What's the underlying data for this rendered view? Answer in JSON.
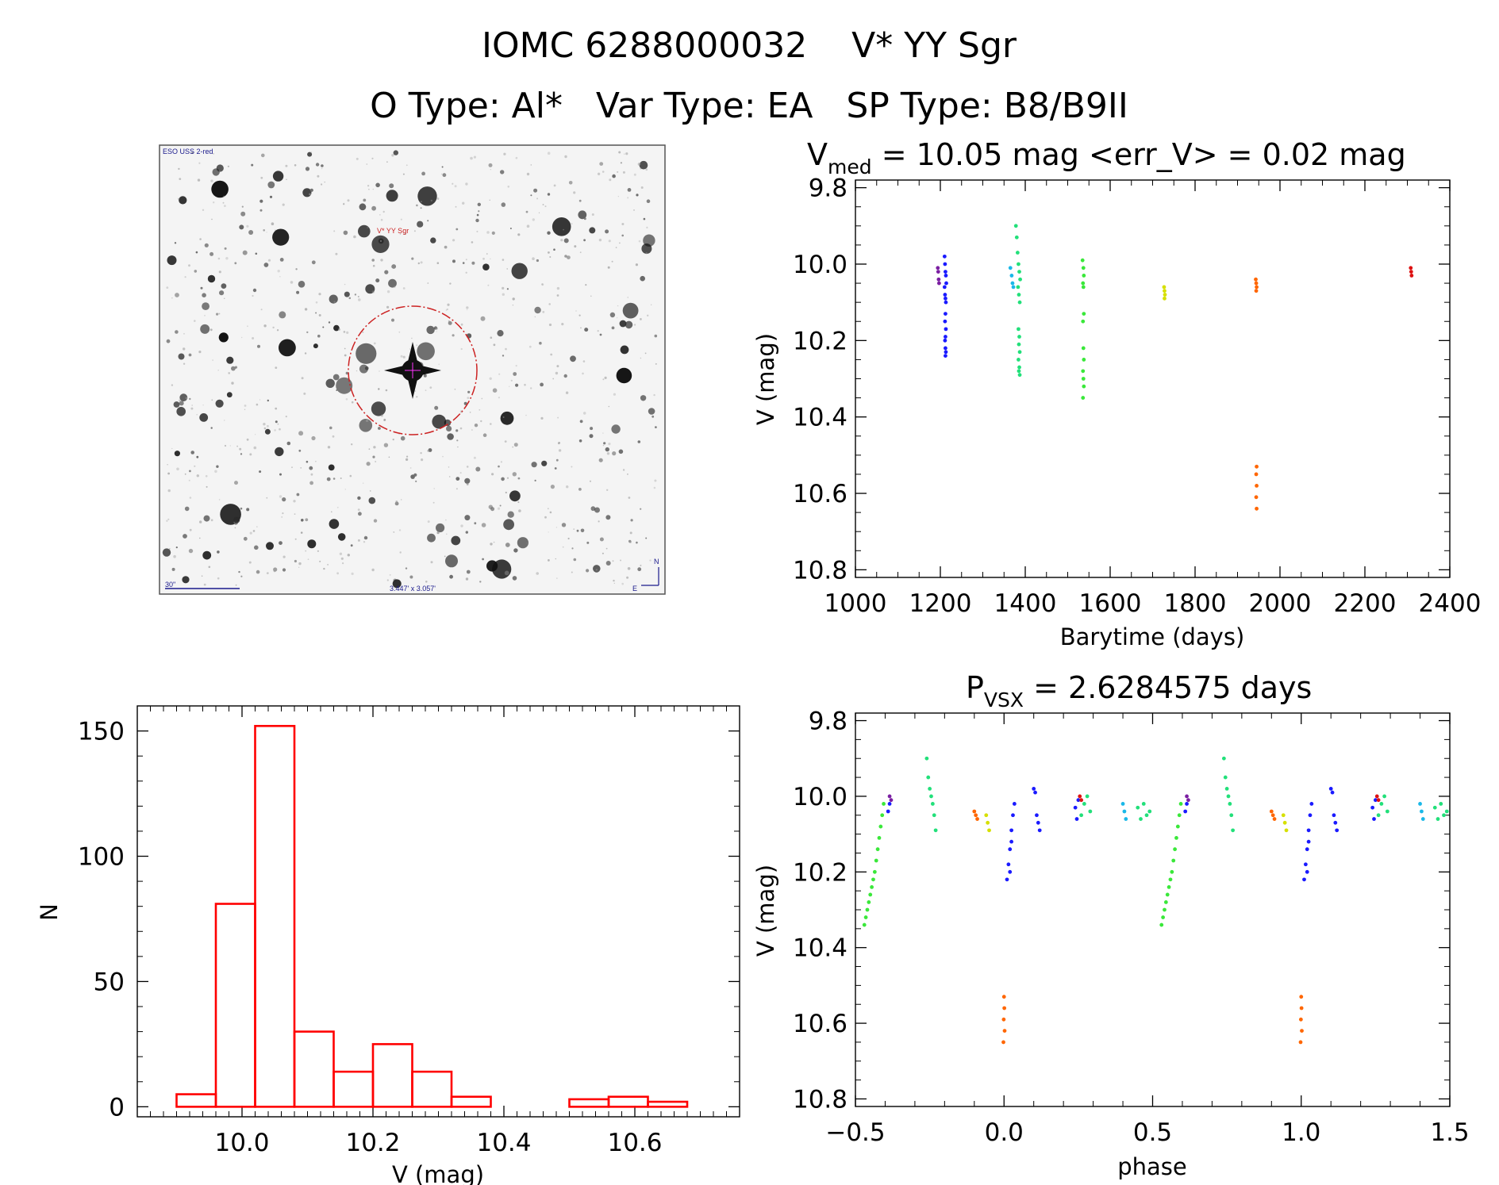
{
  "header": {
    "line1": "IOMC 6288000032    V* YY Sgr",
    "line2": "O Type: Al*   Var Type: EA   SP Type: B8/B9II"
  },
  "finder": {
    "survey_label": "ESO USS 2-red",
    "target_label": "V* YY Sgr",
    "scale_label": "30\"",
    "fov_label": "3.447' x 3.057'",
    "north_label": "N",
    "east_label": "E"
  },
  "chart_data": [
    {
      "id": "light_curve",
      "type": "scatter",
      "title_main": "V",
      "title_sub": "med",
      "title_rest": " = 10.05 mag <err_V> = 0.02 mag",
      "xlabel": "Barytime (days)",
      "ylabel": "V (mag)",
      "xlim": [
        1000,
        2400
      ],
      "ylim": [
        10.82,
        9.78
      ],
      "xticks": [
        "1000",
        "1200",
        "1400",
        "1600",
        "1800",
        "2000",
        "2200",
        "2400"
      ],
      "yticks": [
        "9.8",
        "10.0",
        "10.2",
        "10.4",
        "10.6",
        "10.8"
      ],
      "series": [
        {
          "name": "s1",
          "color": "#7b1fa2",
          "x": [
            1194,
            1195,
            1196,
            1197
          ],
          "y": [
            10.01,
            10.02,
            10.04,
            10.05
          ]
        },
        {
          "name": "s2",
          "color": "#1a1aff",
          "x": [
            1210,
            1211,
            1212,
            1213,
            1214,
            1210,
            1211,
            1212,
            1213,
            1212,
            1211,
            1213,
            1212,
            1211,
            1212,
            1213,
            1212
          ],
          "y": [
            9.98,
            10.0,
            10.02,
            10.03,
            10.05,
            10.06,
            10.08,
            10.09,
            10.1,
            10.13,
            10.15,
            10.17,
            10.19,
            10.2,
            10.22,
            10.23,
            10.24
          ]
        },
        {
          "name": "s3",
          "color": "#1ab8e8",
          "x": [
            1365,
            1368,
            1370,
            1372
          ],
          "y": [
            10.01,
            10.03,
            10.05,
            10.06
          ]
        },
        {
          "name": "s4",
          "color": "#22e07a",
          "x": [
            1378,
            1380,
            1382,
            1384,
            1386,
            1388,
            1383,
            1385,
            1387,
            1384,
            1386,
            1385,
            1387,
            1384,
            1386,
            1385,
            1387
          ],
          "y": [
            9.9,
            9.93,
            9.97,
            10.0,
            10.02,
            10.04,
            10.06,
            10.08,
            10.1,
            10.17,
            10.19,
            10.21,
            10.23,
            10.25,
            10.27,
            10.28,
            10.29
          ]
        },
        {
          "name": "s5",
          "color": "#3ae83a",
          "x": [
            1535,
            1537,
            1538,
            1536,
            1537,
            1538,
            1536,
            1537,
            1538,
            1536,
            1537,
            1538,
            1536
          ],
          "y": [
            9.99,
            10.01,
            10.03,
            10.05,
            10.06,
            10.13,
            10.15,
            10.22,
            10.25,
            10.28,
            10.3,
            10.32,
            10.35
          ]
        },
        {
          "name": "s6",
          "color": "#d6e000",
          "x": [
            1727,
            1728,
            1729,
            1728
          ],
          "y": [
            10.06,
            10.07,
            10.08,
            10.09
          ]
        },
        {
          "name": "s7",
          "color": "#ff6600",
          "x": [
            1943,
            1944,
            1945,
            1944,
            1945,
            1944,
            1945,
            1944,
            1945
          ],
          "y": [
            10.04,
            10.05,
            10.06,
            10.07,
            10.53,
            10.55,
            10.58,
            10.61,
            10.64
          ]
        },
        {
          "name": "s8",
          "color": "#dd1111",
          "x": [
            2308,
            2309,
            2310
          ],
          "y": [
            10.01,
            10.02,
            10.03
          ]
        }
      ]
    },
    {
      "id": "phased_curve",
      "type": "scatter",
      "title_main": "P",
      "title_sub": "VSX",
      "title_rest": " = 2.6284575 days",
      "xlabel": "phase",
      "ylabel": "V (mag)",
      "xlim": [
        -0.5,
        1.5
      ],
      "ylim": [
        10.82,
        9.78
      ],
      "xticks": [
        "−0.5",
        "0.0",
        "0.5",
        "1.0",
        "1.5"
      ],
      "yticks": [
        "9.8",
        "10.0",
        "10.2",
        "10.4",
        "10.6",
        "10.8"
      ],
      "series": [
        {
          "name": "green_ingress",
          "color": "#3ae83a",
          "x": [
            -0.47,
            -0.465,
            -0.46,
            -0.455,
            -0.45,
            -0.445,
            -0.44,
            -0.435,
            -0.43,
            -0.425,
            -0.42,
            -0.415,
            -0.41,
            -0.405
          ],
          "y": [
            10.34,
            10.32,
            10.3,
            10.28,
            10.26,
            10.24,
            10.22,
            10.2,
            10.17,
            10.14,
            10.11,
            10.08,
            10.05,
            10.02
          ]
        },
        {
          "name": "green_egress",
          "color": "#3ae83a",
          "x": [
            0.53,
            0.535,
            0.54,
            0.545,
            0.55,
            0.555,
            0.56,
            0.565,
            0.57,
            0.575,
            0.58,
            0.585,
            0.59,
            0.595
          ],
          "y": [
            10.34,
            10.32,
            10.3,
            10.28,
            10.26,
            10.24,
            10.22,
            10.2,
            10.17,
            10.14,
            10.11,
            10.08,
            10.05,
            10.02
          ]
        },
        {
          "name": "green_high",
          "color": "#22e07a",
          "x": [
            -0.26,
            -0.255,
            -0.25,
            -0.245,
            -0.24,
            -0.235,
            -0.23,
            0.74,
            0.745,
            0.75,
            0.755,
            0.76,
            0.765,
            0.77,
            0.26,
            0.27,
            0.28,
            0.29,
            1.26,
            1.27,
            1.28,
            1.29,
            0.45,
            0.46,
            0.47,
            0.48,
            0.49,
            1.45,
            1.46,
            1.47,
            1.48,
            1.49
          ],
          "y": [
            9.9,
            9.95,
            9.98,
            10.0,
            10.02,
            10.05,
            10.09,
            9.9,
            9.95,
            9.98,
            10.0,
            10.02,
            10.05,
            10.09,
            10.05,
            10.02,
            10.0,
            10.04,
            10.05,
            10.02,
            10.0,
            10.04,
            10.03,
            10.06,
            10.02,
            10.05,
            10.04,
            10.03,
            10.06,
            10.02,
            10.05,
            10.04
          ]
        },
        {
          "name": "cyan",
          "color": "#1ab8e8",
          "x": [
            0.4,
            0.405,
            0.41,
            1.4,
            1.405,
            1.41
          ],
          "y": [
            10.02,
            10.04,
            10.06,
            10.02,
            10.04,
            10.06
          ]
        },
        {
          "name": "blue",
          "color": "#1a1aff",
          "x": [
            0.01,
            0.015,
            0.02,
            0.025,
            0.03,
            0.035,
            0.02,
            0.025,
            0.1,
            0.105,
            0.11,
            0.115,
            0.12,
            0.24,
            0.245,
            0.25,
            -0.39,
            -0.385,
            1.01,
            1.015,
            1.02,
            1.025,
            1.03,
            1.035,
            1.02,
            1.025,
            1.1,
            1.105,
            1.11,
            1.115,
            1.12,
            1.24,
            1.245,
            1.25,
            0.61,
            0.615
          ],
          "y": [
            10.22,
            10.18,
            10.14,
            10.09,
            10.05,
            10.02,
            10.2,
            10.12,
            9.98,
            9.99,
            10.05,
            10.07,
            10.09,
            10.03,
            10.06,
            10.01,
            10.04,
            10.02,
            10.22,
            10.18,
            10.14,
            10.09,
            10.05,
            10.02,
            10.2,
            10.12,
            9.98,
            9.99,
            10.05,
            10.07,
            10.09,
            10.03,
            10.06,
            10.01,
            10.04,
            10.02
          ]
        },
        {
          "name": "purple",
          "color": "#7b1fa2",
          "x": [
            -0.385,
            -0.38,
            0.615,
            0.62
          ],
          "y": [
            10.0,
            10.01,
            10.0,
            10.01
          ]
        },
        {
          "name": "orange",
          "color": "#ff6600",
          "x": [
            -0.1,
            -0.095,
            -0.09,
            0.0,
            0.001,
            -0.001,
            0.002,
            -0.002,
            0.9,
            0.905,
            0.91,
            1.0,
            1.001,
            0.999,
            1.002,
            0.998
          ],
          "y": [
            10.04,
            10.05,
            10.06,
            10.53,
            10.56,
            10.59,
            10.62,
            10.65,
            10.04,
            10.05,
            10.06,
            10.53,
            10.56,
            10.59,
            10.62,
            10.65
          ]
        },
        {
          "name": "yellow",
          "color": "#d6e000",
          "x": [
            -0.06,
            -0.055,
            -0.05,
            0.94,
            0.945,
            0.95
          ],
          "y": [
            10.05,
            10.07,
            10.09,
            10.05,
            10.07,
            10.09
          ]
        },
        {
          "name": "red",
          "color": "#dd1111",
          "x": [
            0.255,
            0.26,
            1.255,
            1.26
          ],
          "y": [
            10.0,
            10.01,
            10.0,
            10.01
          ]
        }
      ]
    },
    {
      "id": "histogram",
      "type": "bar",
      "xlabel": "V (mag)",
      "ylabel": "N",
      "xlim": [
        9.84,
        10.76
      ],
      "ylim": [
        -4,
        160
      ],
      "xticks": [
        "10.0",
        "10.2",
        "10.4",
        "10.6"
      ],
      "yticks": [
        "0",
        "50",
        "100",
        "150"
      ],
      "bin_edges": [
        9.9,
        9.96,
        10.02,
        10.08,
        10.14,
        10.2,
        10.26,
        10.32,
        10.38,
        10.44,
        10.5,
        10.56,
        10.62,
        10.68
      ],
      "values": [
        5,
        81,
        152,
        30,
        14,
        25,
        14,
        4,
        0,
        0,
        3,
        4,
        2
      ],
      "color": "#ff0000"
    }
  ]
}
